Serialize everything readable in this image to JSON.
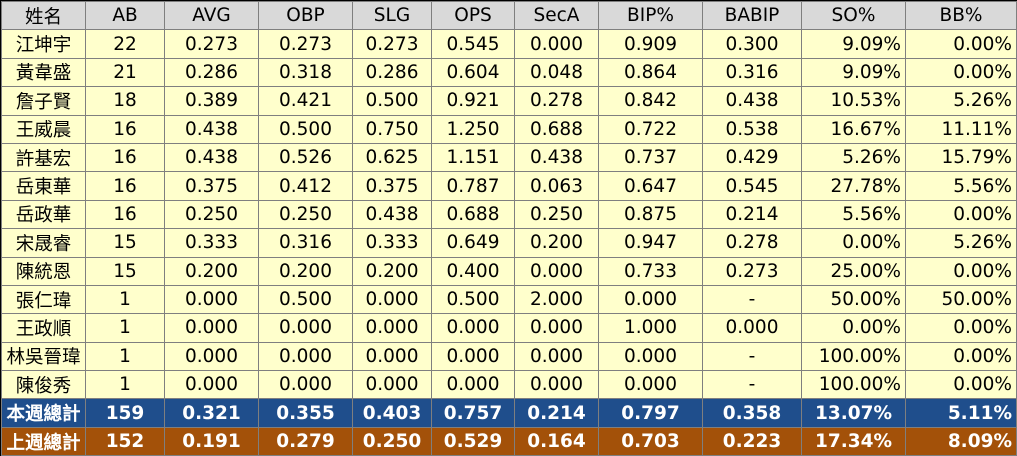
{
  "headers": [
    "姓名",
    "AB",
    "AVG",
    "OBP",
    "SLG",
    "OPS",
    "SecA",
    "BIP%",
    "BABIP",
    "SO%",
    "BB%"
  ],
  "rows": [
    {
      "name": "江坤宇",
      "ab": "22",
      "avg": "0.273",
      "obp": "0.273",
      "slg": "0.273",
      "ops": "0.545",
      "seca": "0.000",
      "bip": "0.909",
      "babip": "0.300",
      "so": "9.09%",
      "bb": "0.00%"
    },
    {
      "name": "黃韋盛",
      "ab": "21",
      "avg": "0.286",
      "obp": "0.318",
      "slg": "0.286",
      "ops": "0.604",
      "seca": "0.048",
      "bip": "0.864",
      "babip": "0.316",
      "so": "9.09%",
      "bb": "0.00%"
    },
    {
      "name": "詹子賢",
      "ab": "18",
      "avg": "0.389",
      "obp": "0.421",
      "slg": "0.500",
      "ops": "0.921",
      "seca": "0.278",
      "bip": "0.842",
      "babip": "0.438",
      "so": "10.53%",
      "bb": "5.26%"
    },
    {
      "name": "王威晨",
      "ab": "16",
      "avg": "0.438",
      "obp": "0.500",
      "slg": "0.750",
      "ops": "1.250",
      "seca": "0.688",
      "bip": "0.722",
      "babip": "0.538",
      "so": "16.67%",
      "bb": "11.11%"
    },
    {
      "name": "許基宏",
      "ab": "16",
      "avg": "0.438",
      "obp": "0.526",
      "slg": "0.625",
      "ops": "1.151",
      "seca": "0.438",
      "bip": "0.737",
      "babip": "0.429",
      "so": "5.26%",
      "bb": "15.79%"
    },
    {
      "name": "岳東華",
      "ab": "16",
      "avg": "0.375",
      "obp": "0.412",
      "slg": "0.375",
      "ops": "0.787",
      "seca": "0.063",
      "bip": "0.647",
      "babip": "0.545",
      "so": "27.78%",
      "bb": "5.56%"
    },
    {
      "name": "岳政華",
      "ab": "16",
      "avg": "0.250",
      "obp": "0.250",
      "slg": "0.438",
      "ops": "0.688",
      "seca": "0.250",
      "bip": "0.875",
      "babip": "0.214",
      "so": "5.56%",
      "bb": "0.00%"
    },
    {
      "name": "宋晟睿",
      "ab": "15",
      "avg": "0.333",
      "obp": "0.316",
      "slg": "0.333",
      "ops": "0.649",
      "seca": "0.200",
      "bip": "0.947",
      "babip": "0.278",
      "so": "0.00%",
      "bb": "5.26%"
    },
    {
      "name": "陳統恩",
      "ab": "15",
      "avg": "0.200",
      "obp": "0.200",
      "slg": "0.200",
      "ops": "0.400",
      "seca": "0.000",
      "bip": "0.733",
      "babip": "0.273",
      "so": "25.00%",
      "bb": "0.00%"
    },
    {
      "name": "張仁瑋",
      "ab": "1",
      "avg": "0.000",
      "obp": "0.500",
      "slg": "0.000",
      "ops": "0.500",
      "seca": "2.000",
      "bip": "0.000",
      "babip": "-",
      "so": "50.00%",
      "bb": "50.00%"
    },
    {
      "name": "王政順",
      "ab": "1",
      "avg": "0.000",
      "obp": "0.000",
      "slg": "0.000",
      "ops": "0.000",
      "seca": "0.000",
      "bip": "1.000",
      "babip": "0.000",
      "so": "0.00%",
      "bb": "0.00%"
    },
    {
      "name": "林吳晉瑋",
      "ab": "1",
      "avg": "0.000",
      "obp": "0.000",
      "slg": "0.000",
      "ops": "0.000",
      "seca": "0.000",
      "bip": "0.000",
      "babip": "-",
      "so": "100.00%",
      "bb": "0.00%"
    },
    {
      "name": "陳俊秀",
      "ab": "1",
      "avg": "0.000",
      "obp": "0.000",
      "slg": "0.000",
      "ops": "0.000",
      "seca": "0.000",
      "bip": "0.000",
      "babip": "-",
      "so": "100.00%",
      "bb": "0.00%"
    }
  ],
  "totals": {
    "this_week": {
      "name": "本週總計",
      "ab": "159",
      "avg": "0.321",
      "obp": "0.355",
      "slg": "0.403",
      "ops": "0.757",
      "seca": "0.214",
      "bip": "0.797",
      "babip": "0.358",
      "so": "13.07%",
      "bb": "5.11%"
    },
    "last_week": {
      "name": "上週總計",
      "ab": "152",
      "avg": "0.191",
      "obp": "0.279",
      "slg": "0.250",
      "ops": "0.529",
      "seca": "0.164",
      "bip": "0.703",
      "babip": "0.223",
      "so": "17.34%",
      "bb": "8.09%"
    }
  },
  "colors": {
    "header_bg": "#d9d9d9",
    "row_bg": "#ffffcc",
    "this_week_bg": "#1f4e8c",
    "last_week_bg": "#a35109"
  }
}
